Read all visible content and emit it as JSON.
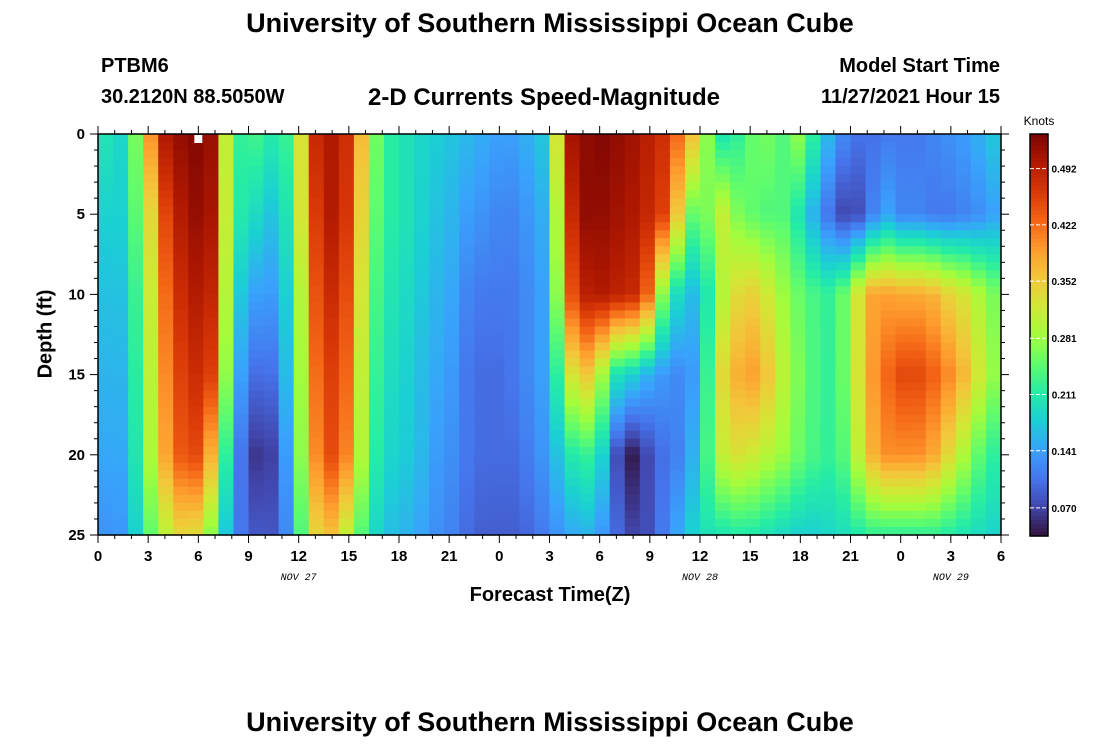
{
  "header": {
    "title": "University of Southern Mississippi Ocean Cube",
    "station": "PTBM6",
    "location": "30.2120N  88.5050W",
    "start_label": "Model Start Time",
    "start_value": "11/27/2021 Hour 15"
  },
  "footer": {
    "title": "University of Southern Mississippi Ocean Cube"
  },
  "chart_data": {
    "type": "heatmap",
    "title": "2-D Currents Speed-Magnitude",
    "xlabel": "Forecast Time(Z)",
    "ylabel": "Depth (ft)",
    "colorbar_title": "Knots",
    "x_tick_labels": [
      "0",
      "3",
      "6",
      "9",
      "12",
      "15",
      "18",
      "21",
      "0",
      "3",
      "6",
      "9",
      "12",
      "15",
      "18",
      "21",
      "0",
      "3",
      "6"
    ],
    "x_range_hours": [
      0,
      54
    ],
    "date_labels": [
      {
        "text": "NOV 27",
        "hour": 12
      },
      {
        "text": "NOV 28",
        "hour": 36
      },
      {
        "text": "NOV 29",
        "hour": 51
      }
    ],
    "y_ticks": [
      0,
      5,
      10,
      15,
      20,
      25
    ],
    "y_range": [
      0,
      25
    ],
    "y_inverted": true,
    "colorbar_ticks": [
      "0.070",
      "0.141",
      "0.211",
      "0.281",
      "0.352",
      "0.422",
      "0.492"
    ],
    "colorbar_range": [
      0.035,
      0.535
    ],
    "depths": [
      0,
      5,
      10,
      15,
      20,
      25
    ],
    "times": [
      0,
      1,
      2,
      3,
      4,
      5,
      6,
      7,
      8,
      9,
      10,
      11,
      12,
      13,
      14,
      15,
      16,
      17,
      18,
      19,
      20,
      21,
      22,
      23,
      24,
      25,
      26,
      27,
      28,
      29,
      30,
      31,
      32,
      33,
      34,
      35,
      36,
      37,
      38,
      39,
      40,
      41,
      42,
      43,
      44,
      45,
      46,
      47,
      48,
      49,
      50,
      51,
      52,
      53,
      54
    ],
    "values": [
      [
        0.23,
        0.17,
        0.22,
        0.38,
        0.5,
        0.52,
        0.53,
        0.51,
        0.2,
        0.24,
        0.22,
        0.2,
        0.3,
        0.48,
        0.5,
        0.47,
        0.33,
        0.22,
        0.21,
        0.19,
        0.18,
        0.17,
        0.16,
        0.15,
        0.14,
        0.14,
        0.16,
        0.18,
        0.5,
        0.52,
        0.53,
        0.52,
        0.51,
        0.49,
        0.47,
        0.4,
        0.33,
        0.2,
        0.21,
        0.25,
        0.26,
        0.24,
        0.28,
        0.2,
        0.14,
        0.11,
        0.1,
        0.11,
        0.11,
        0.11,
        0.12,
        0.13,
        0.14,
        0.16,
        0.18
      ],
      [
        0.2,
        0.16,
        0.22,
        0.32,
        0.45,
        0.5,
        0.52,
        0.5,
        0.21,
        0.21,
        0.17,
        0.17,
        0.3,
        0.46,
        0.5,
        0.46,
        0.3,
        0.22,
        0.21,
        0.19,
        0.17,
        0.16,
        0.14,
        0.13,
        0.12,
        0.12,
        0.14,
        0.16,
        0.46,
        0.52,
        0.52,
        0.51,
        0.5,
        0.48,
        0.45,
        0.3,
        0.21,
        0.33,
        0.27,
        0.25,
        0.24,
        0.24,
        0.2,
        0.14,
        0.09,
        0.06,
        0.1,
        0.15,
        0.12,
        0.12,
        0.11,
        0.11,
        0.12,
        0.13,
        0.15
      ],
      [
        0.18,
        0.15,
        0.2,
        0.3,
        0.42,
        0.48,
        0.5,
        0.48,
        0.2,
        0.15,
        0.13,
        0.15,
        0.27,
        0.44,
        0.48,
        0.44,
        0.28,
        0.21,
        0.2,
        0.18,
        0.16,
        0.15,
        0.12,
        0.11,
        0.11,
        0.11,
        0.13,
        0.15,
        0.42,
        0.49,
        0.5,
        0.49,
        0.48,
        0.42,
        0.22,
        0.18,
        0.15,
        0.28,
        0.33,
        0.35,
        0.32,
        0.28,
        0.25,
        0.23,
        0.22,
        0.28,
        0.38,
        0.39,
        0.38,
        0.38,
        0.37,
        0.34,
        0.32,
        0.28,
        0.25
      ],
      [
        0.17,
        0.14,
        0.19,
        0.29,
        0.4,
        0.46,
        0.48,
        0.45,
        0.18,
        0.11,
        0.09,
        0.13,
        0.26,
        0.42,
        0.46,
        0.42,
        0.27,
        0.2,
        0.19,
        0.17,
        0.15,
        0.14,
        0.11,
        0.1,
        0.1,
        0.11,
        0.13,
        0.15,
        0.3,
        0.37,
        0.3,
        0.2,
        0.18,
        0.15,
        0.13,
        0.12,
        0.15,
        0.32,
        0.37,
        0.39,
        0.36,
        0.3,
        0.26,
        0.23,
        0.22,
        0.28,
        0.38,
        0.42,
        0.45,
        0.45,
        0.43,
        0.4,
        0.36,
        0.3,
        0.26
      ],
      [
        0.16,
        0.13,
        0.18,
        0.28,
        0.38,
        0.44,
        0.45,
        0.35,
        0.15,
        0.07,
        0.05,
        0.1,
        0.25,
        0.4,
        0.45,
        0.4,
        0.26,
        0.19,
        0.18,
        0.17,
        0.14,
        0.13,
        0.11,
        0.1,
        0.1,
        0.1,
        0.12,
        0.14,
        0.2,
        0.23,
        0.2,
        0.08,
        0.04,
        0.08,
        0.11,
        0.12,
        0.18,
        0.3,
        0.33,
        0.32,
        0.3,
        0.28,
        0.25,
        0.23,
        0.22,
        0.26,
        0.36,
        0.4,
        0.4,
        0.4,
        0.38,
        0.33,
        0.28,
        0.23,
        0.21
      ],
      [
        0.14,
        0.12,
        0.16,
        0.24,
        0.3,
        0.34,
        0.33,
        0.25,
        0.13,
        0.09,
        0.08,
        0.09,
        0.22,
        0.34,
        0.36,
        0.3,
        0.22,
        0.17,
        0.16,
        0.15,
        0.13,
        0.12,
        0.1,
        0.09,
        0.09,
        0.09,
        0.1,
        0.12,
        0.14,
        0.16,
        0.14,
        0.1,
        0.07,
        0.08,
        0.12,
        0.16,
        0.2,
        0.2,
        0.21,
        0.21,
        0.2,
        0.19,
        0.18,
        0.18,
        0.19,
        0.2,
        0.22,
        0.22,
        0.22,
        0.22,
        0.22,
        0.21,
        0.2,
        0.19,
        0.18
      ]
    ]
  },
  "colors": {
    "plot_border": "#000000",
    "top_marker": "#ffffff",
    "colormap": [
      "#30123b",
      "#4145ab",
      "#4675ed",
      "#39a2fc",
      "#1bcfd4",
      "#24eca6",
      "#61fc6c",
      "#a4fc3b",
      "#d1e834",
      "#f3c63a",
      "#fe9b2d",
      "#f36315",
      "#d93807",
      "#b11901",
      "#7a0403"
    ]
  }
}
